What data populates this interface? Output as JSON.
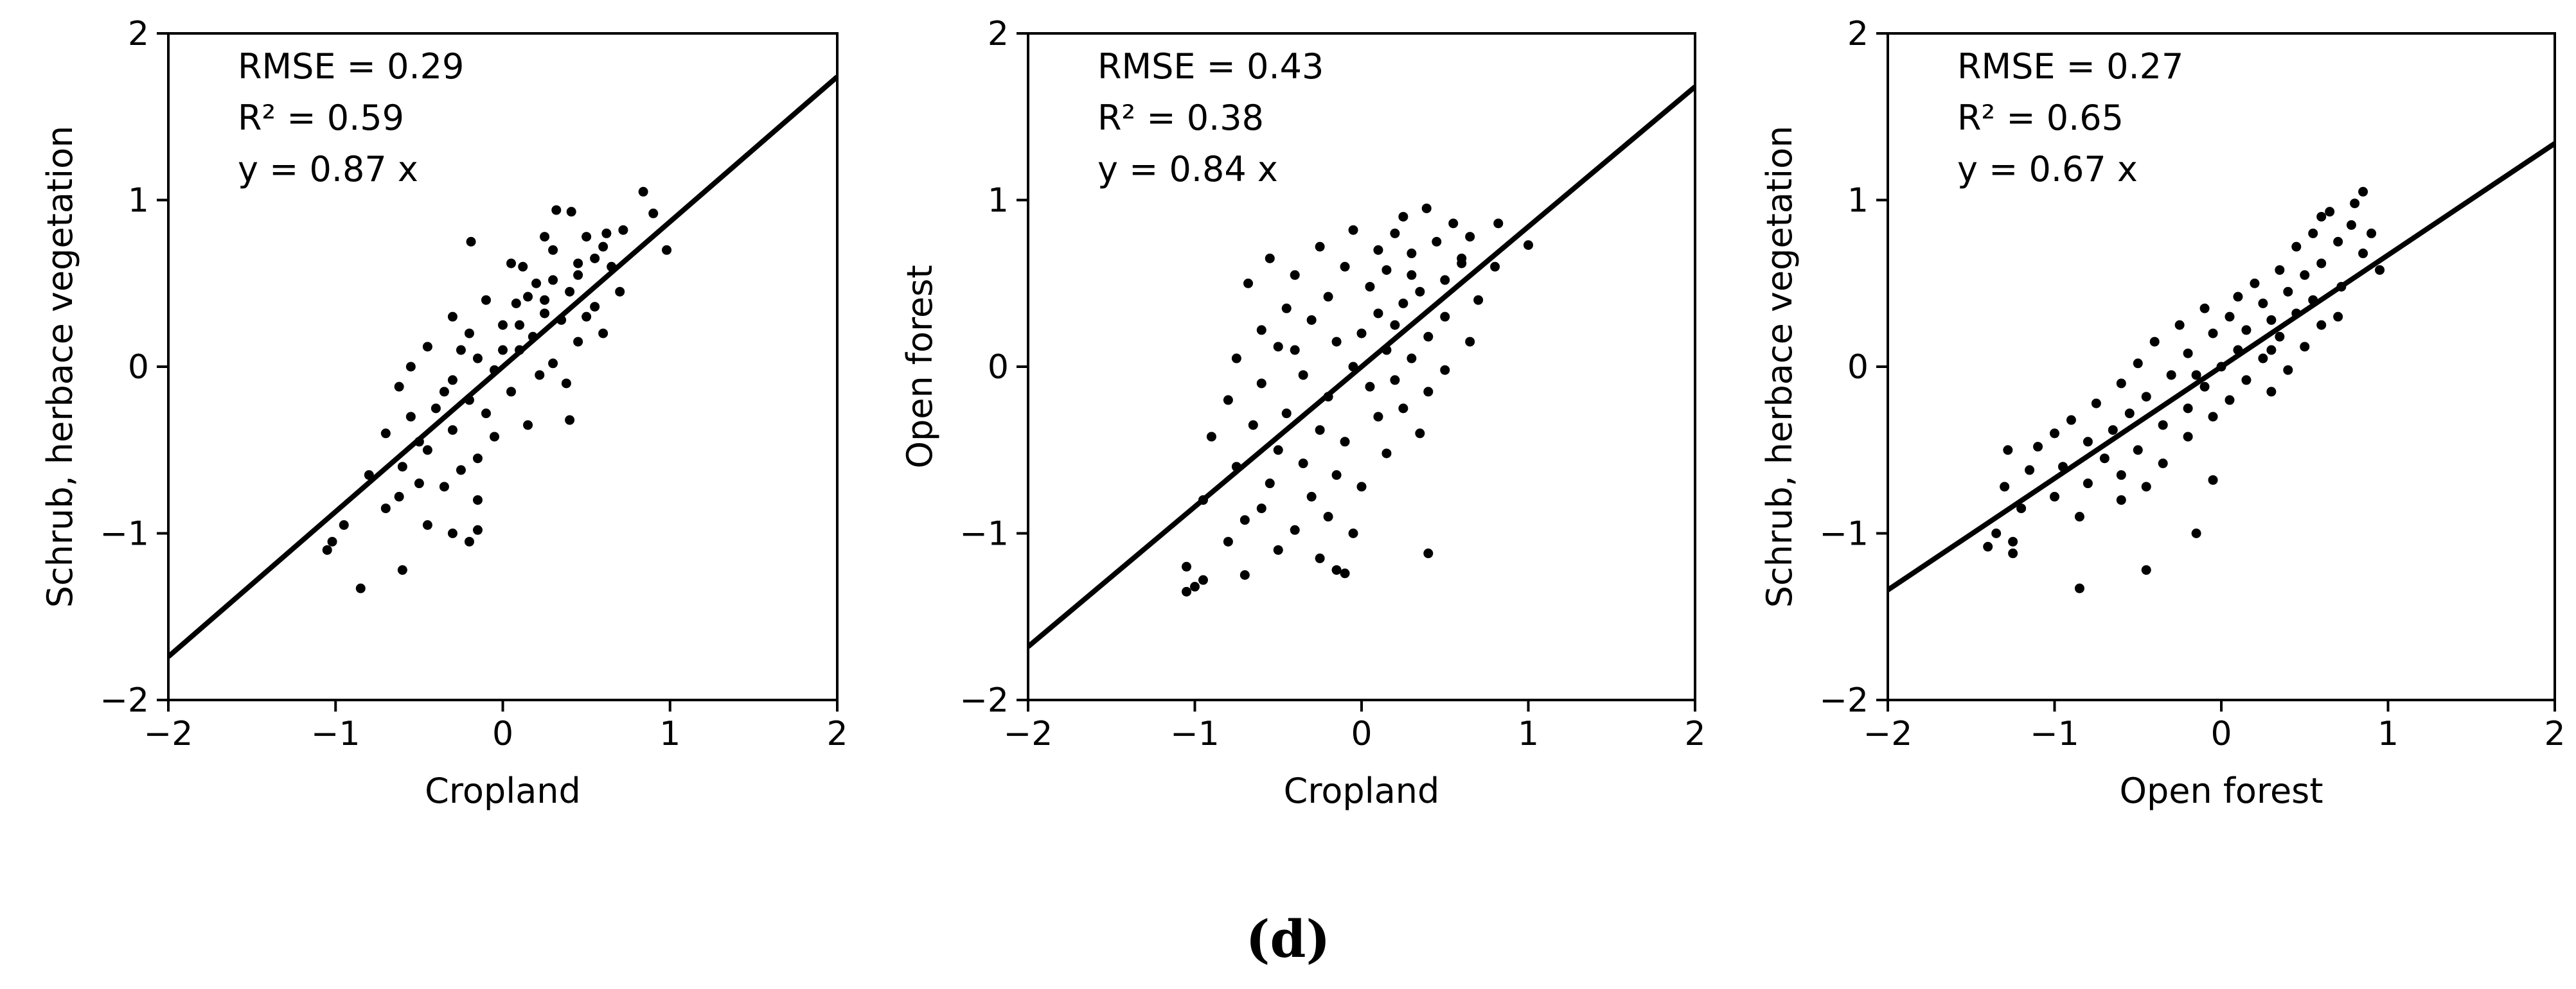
{
  "figure": {
    "panel_label": "(d)"
  },
  "chart_data": [
    {
      "type": "scatter",
      "xlabel": "Cropland",
      "ylabel": "Schrub, herbace vegetation",
      "xlim": [
        -2,
        2
      ],
      "ylim": [
        -2,
        2
      ],
      "xticks": [
        -2,
        -1,
        0,
        1,
        2
      ],
      "yticks": [
        -2,
        -1,
        0,
        1,
        2
      ],
      "stats": [
        "RMSE = 0.29",
        "R² = 0.59",
        "y = 0.87 x"
      ],
      "fit_line": {
        "slope": 0.87,
        "intercept": 0
      },
      "point_color": "#000000",
      "points": [
        [
          0.84,
          1.05
        ],
        [
          0.32,
          0.94
        ],
        [
          0.41,
          0.93
        ],
        [
          0.9,
          0.92
        ],
        [
          0.62,
          0.8
        ],
        [
          0.5,
          0.78
        ],
        [
          0.25,
          0.78
        ],
        [
          -0.19,
          0.75
        ],
        [
          0.6,
          0.72
        ],
        [
          0.98,
          0.7
        ],
        [
          0.55,
          0.65
        ],
        [
          0.05,
          0.62
        ],
        [
          0.12,
          0.6
        ],
        [
          0.45,
          0.55
        ],
        [
          0.3,
          0.52
        ],
        [
          0.2,
          0.5
        ],
        [
          0.4,
          0.45
        ],
        [
          0.15,
          0.42
        ],
        [
          -0.1,
          0.4
        ],
        [
          0.08,
          0.38
        ],
        [
          0.55,
          0.36
        ],
        [
          0.25,
          0.32
        ],
        [
          -0.3,
          0.3
        ],
        [
          0.35,
          0.28
        ],
        [
          0.0,
          0.25
        ],
        [
          -0.2,
          0.2
        ],
        [
          0.18,
          0.18
        ],
        [
          0.45,
          0.15
        ],
        [
          -0.45,
          0.12
        ],
        [
          0.1,
          0.1
        ],
        [
          -0.15,
          0.05
        ],
        [
          0.3,
          0.02
        ],
        [
          -0.55,
          0.0
        ],
        [
          -0.05,
          -0.02
        ],
        [
          0.22,
          -0.05
        ],
        [
          -0.3,
          -0.08
        ],
        [
          0.38,
          -0.1
        ],
        [
          -0.62,
          -0.12
        ],
        [
          0.05,
          -0.15
        ],
        [
          -0.2,
          -0.2
        ],
        [
          -0.4,
          -0.25
        ],
        [
          -0.1,
          -0.28
        ],
        [
          -0.55,
          -0.3
        ],
        [
          0.4,
          -0.32
        ],
        [
          -0.3,
          -0.38
        ],
        [
          -0.7,
          -0.4
        ],
        [
          -0.05,
          -0.42
        ],
        [
          -0.45,
          -0.5
        ],
        [
          -0.15,
          -0.55
        ],
        [
          -0.6,
          -0.6
        ],
        [
          -0.25,
          -0.62
        ],
        [
          -0.8,
          -0.65
        ],
        [
          -0.5,
          -0.7
        ],
        [
          -0.35,
          -0.72
        ],
        [
          -0.62,
          -0.78
        ],
        [
          -0.15,
          -0.8
        ],
        [
          -0.7,
          -0.85
        ],
        [
          -0.45,
          -0.95
        ],
        [
          -0.15,
          -0.98
        ],
        [
          -0.95,
          -0.95
        ],
        [
          -0.3,
          -1.0
        ],
        [
          -1.02,
          -1.05
        ],
        [
          -0.2,
          -1.05
        ],
        [
          -1.05,
          -1.1
        ],
        [
          -0.6,
          -1.22
        ],
        [
          -0.85,
          -1.33
        ],
        [
          0.25,
          0.4
        ],
        [
          0.5,
          0.3
        ],
        [
          0.65,
          0.6
        ],
        [
          0.7,
          0.45
        ],
        [
          0.1,
          0.25
        ],
        [
          -0.25,
          0.1
        ],
        [
          0.3,
          0.7
        ],
        [
          0.6,
          0.2
        ],
        [
          -0.35,
          -0.15
        ],
        [
          0.15,
          -0.35
        ],
        [
          -0.5,
          -0.45
        ],
        [
          0.0,
          0.1
        ],
        [
          0.45,
          0.62
        ],
        [
          0.72,
          0.82
        ]
      ]
    },
    {
      "type": "scatter",
      "xlabel": "Cropland",
      "ylabel": "Open forest",
      "xlim": [
        -2,
        2
      ],
      "ylim": [
        -2,
        2
      ],
      "xticks": [
        -2,
        -1,
        0,
        1,
        2
      ],
      "yticks": [
        -2,
        -1,
        0,
        1,
        2
      ],
      "stats": [
        "RMSE = 0.43",
        "R² = 0.38",
        "y = 0.84 x"
      ],
      "fit_line": {
        "slope": 0.84,
        "intercept": 0
      },
      "point_color": "#000000",
      "points": [
        [
          0.39,
          0.95
        ],
        [
          0.25,
          0.9
        ],
        [
          0.55,
          0.86
        ],
        [
          0.82,
          0.86
        ],
        [
          -0.05,
          0.82
        ],
        [
          0.2,
          0.8
        ],
        [
          0.65,
          0.78
        ],
        [
          0.45,
          0.75
        ],
        [
          1.0,
          0.73
        ],
        [
          -0.25,
          0.72
        ],
        [
          0.1,
          0.7
        ],
        [
          0.3,
          0.68
        ],
        [
          -0.55,
          0.65
        ],
        [
          0.6,
          0.62
        ],
        [
          -0.1,
          0.6
        ],
        [
          0.15,
          0.58
        ],
        [
          -0.4,
          0.55
        ],
        [
          0.5,
          0.52
        ],
        [
          -0.68,
          0.5
        ],
        [
          0.05,
          0.48
        ],
        [
          0.35,
          0.45
        ],
        [
          -0.2,
          0.42
        ],
        [
          0.7,
          0.4
        ],
        [
          0.25,
          0.38
        ],
        [
          -0.45,
          0.35
        ],
        [
          0.1,
          0.32
        ],
        [
          0.5,
          0.3
        ],
        [
          -0.3,
          0.28
        ],
        [
          0.2,
          0.25
        ],
        [
          -0.6,
          0.22
        ],
        [
          0.0,
          0.2
        ],
        [
          0.4,
          0.18
        ],
        [
          -0.15,
          0.15
        ],
        [
          0.65,
          0.15
        ],
        [
          -0.5,
          0.12
        ],
        [
          0.15,
          0.1
        ],
        [
          -0.75,
          0.05
        ],
        [
          0.3,
          0.05
        ],
        [
          -0.05,
          0.0
        ],
        [
          0.5,
          -0.02
        ],
        [
          -0.35,
          -0.05
        ],
        [
          0.2,
          -0.08
        ],
        [
          -0.6,
          -0.1
        ],
        [
          0.05,
          -0.12
        ],
        [
          0.4,
          -0.15
        ],
        [
          -0.2,
          -0.18
        ],
        [
          -0.8,
          -0.2
        ],
        [
          0.25,
          -0.25
        ],
        [
          -0.45,
          -0.28
        ],
        [
          0.1,
          -0.3
        ],
        [
          -0.65,
          -0.35
        ],
        [
          -0.25,
          -0.38
        ],
        [
          0.35,
          -0.4
        ],
        [
          -0.9,
          -0.42
        ],
        [
          -0.1,
          -0.45
        ],
        [
          -0.5,
          -0.5
        ],
        [
          0.15,
          -0.52
        ],
        [
          -0.35,
          -0.58
        ],
        [
          -0.75,
          -0.6
        ],
        [
          -0.15,
          -0.65
        ],
        [
          -0.55,
          -0.7
        ],
        [
          0.0,
          -0.72
        ],
        [
          -0.3,
          -0.78
        ],
        [
          -0.95,
          -0.8
        ],
        [
          -0.6,
          -0.85
        ],
        [
          -0.2,
          -0.9
        ],
        [
          -0.7,
          -0.92
        ],
        [
          -0.4,
          -0.98
        ],
        [
          -0.05,
          -1.0
        ],
        [
          -0.8,
          -1.05
        ],
        [
          -0.5,
          -1.1
        ],
        [
          0.4,
          -1.12
        ],
        [
          -0.25,
          -1.15
        ],
        [
          -1.05,
          -1.2
        ],
        [
          -0.15,
          -1.22
        ],
        [
          -0.7,
          -1.25
        ],
        [
          -0.1,
          -1.24
        ],
        [
          -0.95,
          -1.28
        ],
        [
          -1.0,
          -1.32
        ],
        [
          -1.05,
          -1.35
        ],
        [
          0.6,
          0.65
        ],
        [
          0.3,
          0.55
        ],
        [
          -0.4,
          0.1
        ],
        [
          0.8,
          0.6
        ]
      ]
    },
    {
      "type": "scatter",
      "xlabel": "Open forest",
      "ylabel": "Schrub, herbace vegetation",
      "xlim": [
        -2,
        2
      ],
      "ylim": [
        -2,
        2
      ],
      "xticks": [
        -2,
        -1,
        0,
        1,
        2
      ],
      "yticks": [
        -2,
        -1,
        0,
        1,
        2
      ],
      "stats": [
        "RMSE = 0.27",
        "R² = 0.65",
        "y = 0.67 x"
      ],
      "fit_line": {
        "slope": 0.67,
        "intercept": 0
      },
      "point_color": "#000000",
      "points": [
        [
          0.85,
          1.05
        ],
        [
          0.8,
          0.98
        ],
        [
          0.65,
          0.93
        ],
        [
          0.6,
          0.9
        ],
        [
          0.78,
          0.85
        ],
        [
          0.55,
          0.8
        ],
        [
          0.7,
          0.75
        ],
        [
          0.45,
          0.72
        ],
        [
          0.85,
          0.68
        ],
        [
          0.6,
          0.62
        ],
        [
          0.95,
          0.58
        ],
        [
          0.35,
          0.58
        ],
        [
          0.5,
          0.55
        ],
        [
          0.2,
          0.5
        ],
        [
          0.72,
          0.48
        ],
        [
          0.4,
          0.45
        ],
        [
          0.1,
          0.42
        ],
        [
          0.55,
          0.4
        ],
        [
          0.25,
          0.38
        ],
        [
          -0.1,
          0.35
        ],
        [
          0.45,
          0.32
        ],
        [
          0.05,
          0.3
        ],
        [
          0.3,
          0.28
        ],
        [
          -0.25,
          0.25
        ],
        [
          0.6,
          0.25
        ],
        [
          0.15,
          0.22
        ],
        [
          -0.05,
          0.2
        ],
        [
          0.35,
          0.18
        ],
        [
          -0.4,
          0.15
        ],
        [
          0.5,
          0.12
        ],
        [
          0.1,
          0.1
        ],
        [
          -0.2,
          0.08
        ],
        [
          0.25,
          0.05
        ],
        [
          -0.5,
          0.02
        ],
        [
          0.0,
          0.0
        ],
        [
          0.4,
          -0.02
        ],
        [
          -0.3,
          -0.05
        ],
        [
          0.15,
          -0.08
        ],
        [
          -0.6,
          -0.1
        ],
        [
          -0.1,
          -0.12
        ],
        [
          0.3,
          -0.15
        ],
        [
          -0.45,
          -0.18
        ],
        [
          0.05,
          -0.2
        ],
        [
          -0.75,
          -0.22
        ],
        [
          -0.2,
          -0.25
        ],
        [
          -0.55,
          -0.28
        ],
        [
          -0.05,
          -0.3
        ],
        [
          -0.9,
          -0.32
        ],
        [
          -0.35,
          -0.35
        ],
        [
          -0.65,
          -0.38
        ],
        [
          -1.0,
          -0.4
        ],
        [
          -0.2,
          -0.42
        ],
        [
          -0.8,
          -0.45
        ],
        [
          -1.1,
          -0.48
        ],
        [
          -0.5,
          -0.5
        ],
        [
          -1.28,
          -0.5
        ],
        [
          -0.7,
          -0.55
        ],
        [
          -0.35,
          -0.58
        ],
        [
          -0.95,
          -0.6
        ],
        [
          -1.15,
          -0.62
        ],
        [
          -0.6,
          -0.65
        ],
        [
          -0.05,
          -0.68
        ],
        [
          -0.8,
          -0.7
        ],
        [
          -1.3,
          -0.72
        ],
        [
          -0.45,
          -0.72
        ],
        [
          -1.0,
          -0.78
        ],
        [
          -0.6,
          -0.8
        ],
        [
          -1.2,
          -0.85
        ],
        [
          -0.85,
          -0.9
        ],
        [
          -1.35,
          -1.0
        ],
        [
          -0.15,
          -1.0
        ],
        [
          -1.25,
          -1.05
        ],
        [
          -1.4,
          -1.08
        ],
        [
          -1.25,
          -1.12
        ],
        [
          -0.45,
          -1.22
        ],
        [
          -0.85,
          -1.33
        ],
        [
          0.9,
          0.8
        ],
        [
          0.3,
          0.1
        ],
        [
          -0.15,
          -0.05
        ],
        [
          0.7,
          0.3
        ]
      ]
    }
  ]
}
